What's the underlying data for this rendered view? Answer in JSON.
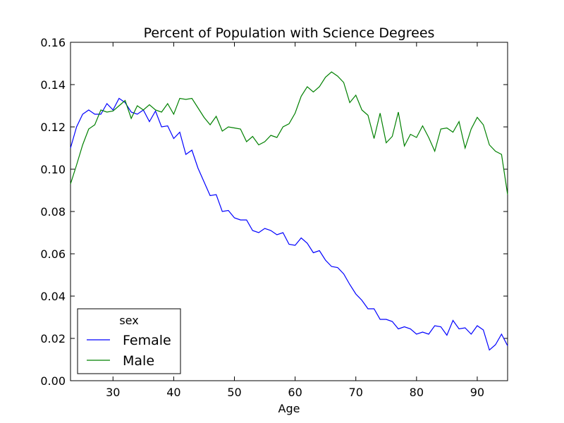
{
  "chart_data": {
    "type": "line",
    "title": "Percent of Population with Science Degrees",
    "xlabel": "Age",
    "ylabel": "",
    "xlim": [
      23,
      95
    ],
    "ylim": [
      0.0,
      0.16
    ],
    "x_ticks": [
      30,
      40,
      50,
      60,
      70,
      80,
      90
    ],
    "y_ticks": [
      0.0,
      0.02,
      0.04,
      0.06,
      0.08,
      0.1,
      0.12,
      0.14,
      0.16
    ],
    "y_tick_labels": [
      "0.00",
      "0.02",
      "0.04",
      "0.06",
      "0.08",
      "0.10",
      "0.12",
      "0.14",
      "0.16"
    ],
    "grid": false,
    "legend": {
      "title": "sex",
      "placement": "lower-left"
    },
    "x": [
      23,
      24,
      25,
      26,
      27,
      28,
      29,
      30,
      31,
      32,
      33,
      34,
      35,
      36,
      37,
      38,
      39,
      40,
      41,
      42,
      43,
      44,
      45,
      46,
      47,
      48,
      49,
      50,
      51,
      52,
      53,
      54,
      55,
      56,
      57,
      58,
      59,
      60,
      61,
      62,
      63,
      64,
      65,
      66,
      67,
      68,
      69,
      70,
      71,
      72,
      73,
      74,
      75,
      76,
      77,
      78,
      79,
      80,
      81,
      82,
      83,
      84,
      85,
      86,
      87,
      88,
      89,
      90,
      91,
      92,
      93,
      94,
      95
    ],
    "series": [
      {
        "name": "Female",
        "color": "#0000ff",
        "values": [
          0.11,
          0.12,
          0.126,
          0.128,
          0.126,
          0.126,
          0.131,
          0.128,
          0.1335,
          0.1315,
          0.127,
          0.126,
          0.128,
          0.1225,
          0.1275,
          0.12,
          0.1205,
          0.1145,
          0.1175,
          0.107,
          0.109,
          0.1005,
          0.094,
          0.0875,
          0.088,
          0.08,
          0.0805,
          0.077,
          0.076,
          0.076,
          0.071,
          0.07,
          0.072,
          0.071,
          0.069,
          0.07,
          0.0645,
          0.064,
          0.0675,
          0.065,
          0.0605,
          0.0615,
          0.057,
          0.054,
          0.0535,
          0.0505,
          0.0455,
          0.041,
          0.038,
          0.034,
          0.034,
          0.029,
          0.029,
          0.028,
          0.0245,
          0.0255,
          0.0245,
          0.022,
          0.023,
          0.022,
          0.026,
          0.0255,
          0.0215,
          0.0285,
          0.0245,
          0.025,
          0.022,
          0.026,
          0.024,
          0.0145,
          0.017,
          0.022,
          0.0165
        ]
      },
      {
        "name": "Male",
        "color": "#008000",
        "values": [
          0.093,
          0.102,
          0.1115,
          0.119,
          0.121,
          0.128,
          0.127,
          0.1275,
          0.13,
          0.1325,
          0.124,
          0.13,
          0.128,
          0.1305,
          0.128,
          0.127,
          0.131,
          0.126,
          0.1335,
          0.133,
          0.1335,
          0.129,
          0.1245,
          0.121,
          0.125,
          0.118,
          0.12,
          0.1195,
          0.119,
          0.113,
          0.1155,
          0.1115,
          0.113,
          0.116,
          0.115,
          0.12,
          0.1215,
          0.1265,
          0.1345,
          0.139,
          0.1365,
          0.139,
          0.1435,
          0.146,
          0.144,
          0.141,
          0.1315,
          0.135,
          0.128,
          0.1255,
          0.1145,
          0.1265,
          0.1125,
          0.1155,
          0.127,
          0.111,
          0.1165,
          0.115,
          0.1205,
          0.115,
          0.1085,
          0.119,
          0.1195,
          0.1175,
          0.1225,
          0.11,
          0.119,
          0.1245,
          0.121,
          0.1115,
          0.1085,
          0.107,
          0.088
        ]
      }
    ]
  }
}
